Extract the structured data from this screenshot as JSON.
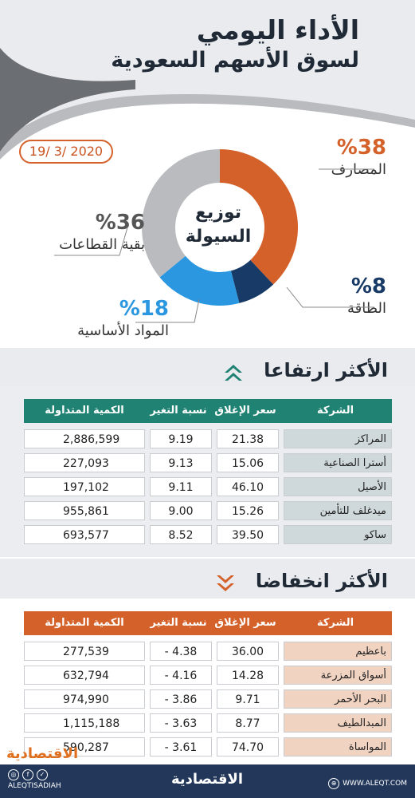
{
  "header": {
    "title_line1": "الأداء اليومي",
    "title_line2": "لسوق الأسهم السعودية"
  },
  "date": "19/ 3/ 2020",
  "chart_data": {
    "type": "pie",
    "title": "توزيع السيولة",
    "slices": [
      {
        "label": "المصارف",
        "value": 38,
        "pct_label": "%38",
        "color": "#d4612a"
      },
      {
        "label": "الطاقة",
        "value": 8,
        "pct_label": "%8",
        "color": "#183a66"
      },
      {
        "label": "المواد الأساسية",
        "value": 18,
        "pct_label": "%18",
        "color": "#2a97e0"
      },
      {
        "label": "بقية القطاعات",
        "value": 36,
        "pct_label": "%36",
        "color": "#b9bbbe"
      }
    ]
  },
  "gainers": {
    "title": "الأكثر ارتفاعا",
    "header_color": "#1f8272",
    "name_bg": "#cfd9dc",
    "columns": [
      "الشركة",
      "سعر الإغلاق",
      "نسبة التغير %",
      "الكمية المتداولة"
    ],
    "rows": [
      {
        "name": "المراكز",
        "close": "21.38",
        "change": "9.19",
        "volume": "2,886,599"
      },
      {
        "name": "أسترا الصناعية",
        "close": "15.06",
        "change": "9.13",
        "volume": "227,093"
      },
      {
        "name": "الأصيل",
        "close": "46.10",
        "change": "9.11",
        "volume": "197,102"
      },
      {
        "name": "ميدغلف للتأمين",
        "close": "15.26",
        "change": "9.00",
        "volume": "955,861"
      },
      {
        "name": "ساكو",
        "close": "39.50",
        "change": "8.52",
        "volume": "693,577"
      }
    ]
  },
  "losers": {
    "title": "الأكثر انخفاضا",
    "header_color": "#d4612a",
    "name_bg": "#f1d3c2",
    "columns": [
      "الشركة",
      "سعر الإغلاق",
      "نسبة التغير %",
      "الكمية المتداولة"
    ],
    "rows": [
      {
        "name": "باعظيم",
        "close": "36.00",
        "change": "4.38 -",
        "volume": "277,539"
      },
      {
        "name": "أسواق المزرعة",
        "close": "14.28",
        "change": "4.16 -",
        "volume": "632,794"
      },
      {
        "name": "البحر الأحمر",
        "close": "9.71",
        "change": "3.86 -",
        "volume": "974,990"
      },
      {
        "name": "المبدالطيف",
        "close": "8.77",
        "change": "3.63 -",
        "volume": "1,115,188"
      },
      {
        "name": "المواساة",
        "close": "74.70",
        "change": "3.61 -",
        "volume": "590,287"
      }
    ]
  },
  "footer": {
    "brand": "الاقتصادية",
    "social_handle": "ALEQTISADIAH",
    "website": "WWW.ALEQT.COM"
  }
}
